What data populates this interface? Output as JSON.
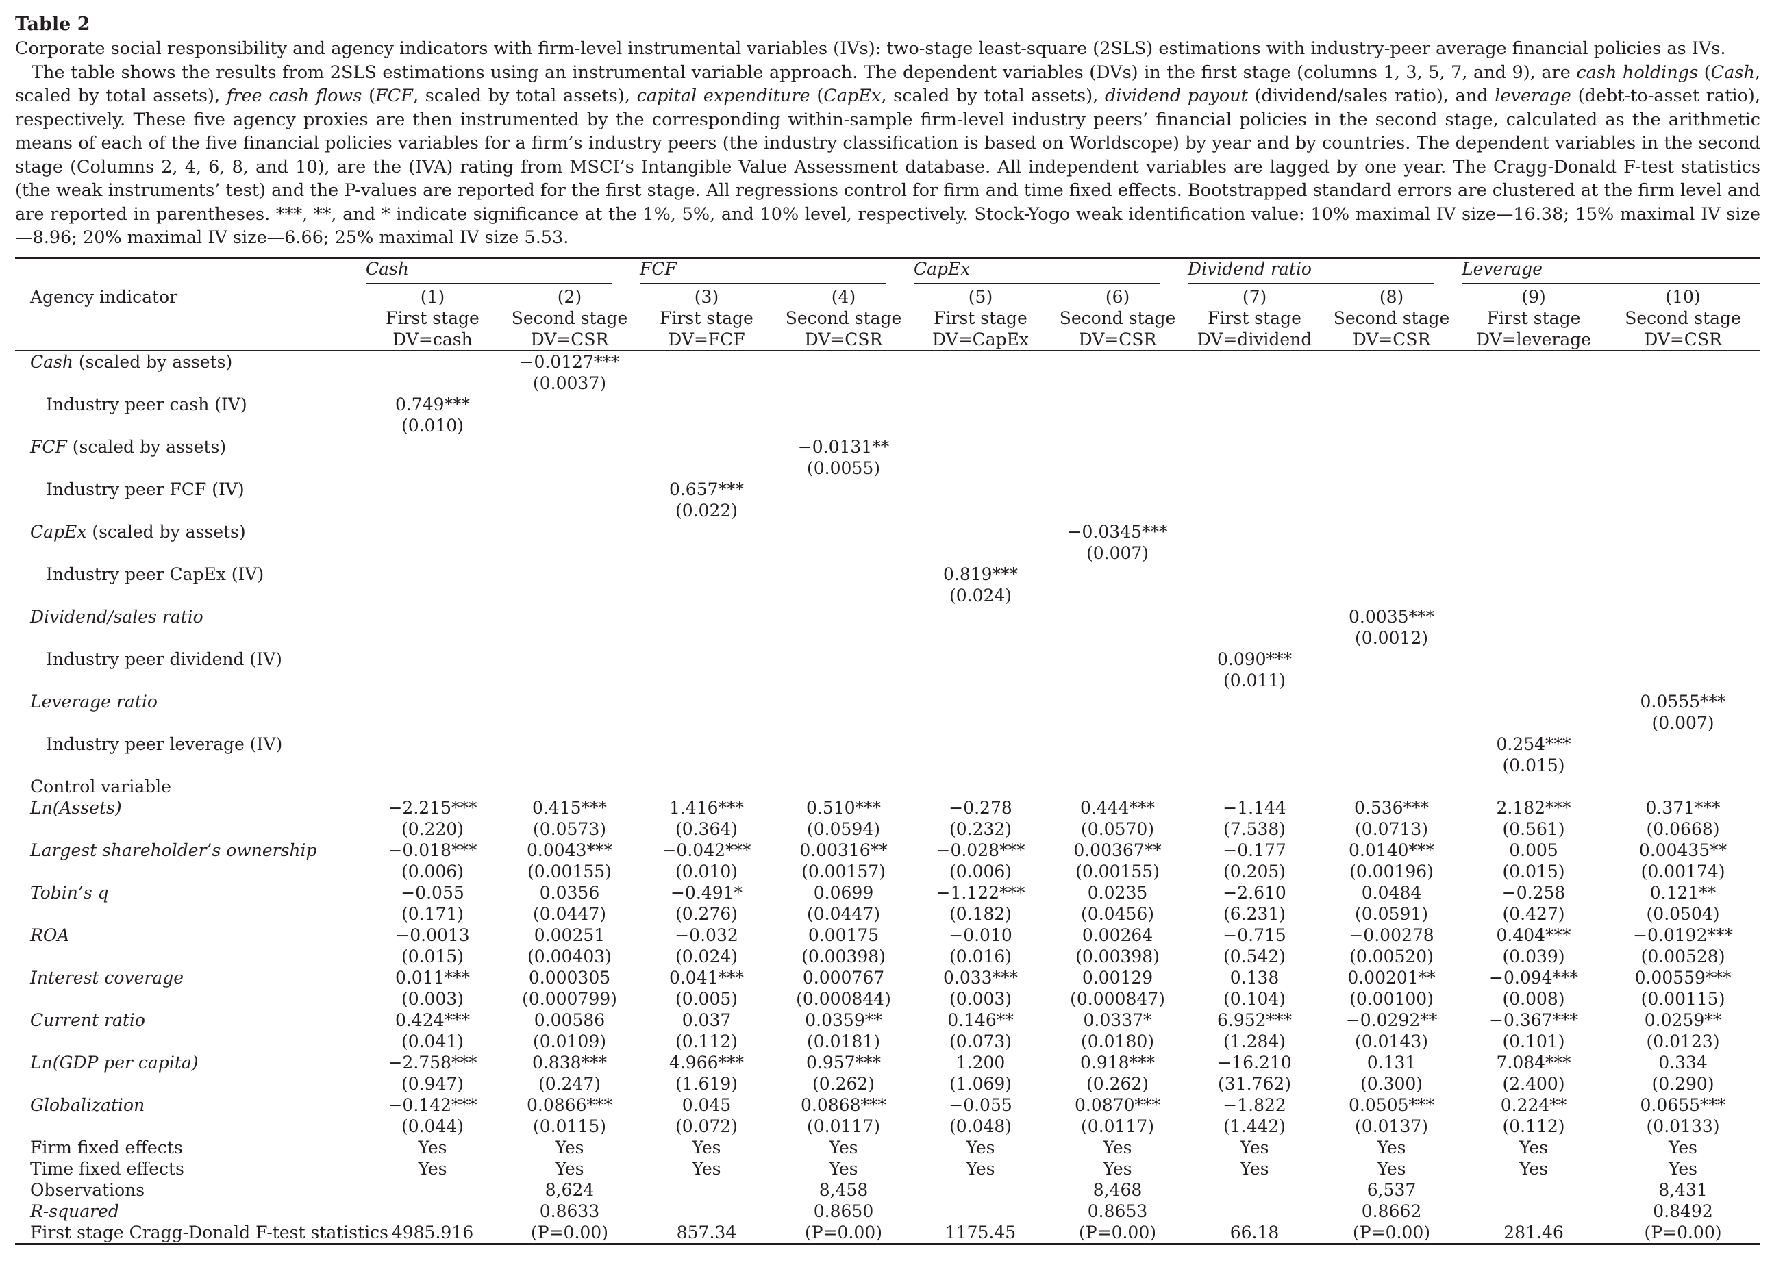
{
  "table_label": "Table 2",
  "caption_title": "Corporate social responsibility and agency indicators with firm-level instrumental variables (IVs): two-stage least-square (2SLS) estimations with industry-peer average financial policies as IVs.",
  "caption_body": {
    "t1": "The table shows the results from 2SLS estimations using an instrumental variable approach. The dependent variables (DVs) in the first stage (columns 1, 3, 5, 7, and 9), are ",
    "e1": "cash holdings",
    "t2": " (",
    "e2": "Cash",
    "t3": ", scaled by total assets), ",
    "e3": "free cash flows",
    "t4": " (",
    "e4": "FCF",
    "t5": ", scaled by total assets), ",
    "e5": "capital expenditure",
    "t6": " (",
    "e6": "CapEx",
    "t7": ", scaled by total assets), ",
    "e7": "dividend payout",
    "t8": " (dividend/sales ratio), and ",
    "e8": "leverage",
    "t9": " (debt-to-asset ratio), respectively. These five agency proxies are then instrumented by the corresponding within-sample firm-level industry peers’ financial policies in the second stage, calculated as the arithmetic means of each of the five financial policies variables for a firm’s industry peers (the industry classification is based on Worldscope) by year and by countries. The dependent variables in the second stage (Columns 2, 4, 6, 8, and 10), are the (IVA) rating from MSCI’s Intangible Value Assessment database. All independent variables are lagged by one year. The Cragg-Donald F-test statistics (the weak instruments’ test) and the P-values are reported for the first stage. All regressions control for firm and time fixed effects. Bootstrapped standard errors are clustered at the firm level and are reported in parentheses. ***, **, and * indicate significance at the 1%, 5%, and 10% level, respectively. Stock-Yogo weak identification value: 10% maximal IV size—16.38; 15% maximal IV size—8.96; 20% maximal IV size—6.66; 25% maximal IV size 5.53."
  },
  "groups": [
    "Cash",
    "FCF",
    "CapEx",
    "Dividend ratio",
    "Leverage"
  ],
  "row_header_label": "Agency indicator",
  "columns": [
    {
      "num": "(1)",
      "stage": "First stage",
      "dv": "DV=cash"
    },
    {
      "num": "(2)",
      "stage": "Second stage",
      "dv": "DV=CSR"
    },
    {
      "num": "(3)",
      "stage": "First stage",
      "dv": "DV=FCF"
    },
    {
      "num": "(4)",
      "stage": "Second stage",
      "dv": "DV=CSR"
    },
    {
      "num": "(5)",
      "stage": "First stage",
      "dv": "DV=CapEx"
    },
    {
      "num": "(6)",
      "stage": "Second stage",
      "dv": "DV=CSR"
    },
    {
      "num": "(7)",
      "stage": "First stage",
      "dv": "DV=dividend"
    },
    {
      "num": "(8)",
      "stage": "Second stage",
      "dv": "DV=CSR"
    },
    {
      "num": "(9)",
      "stage": "First stage",
      "dv": "DV=leverage"
    },
    {
      "num": "(10)",
      "stage": "Second stage",
      "dv": "DV=CSR"
    }
  ],
  "agency_rows": [
    {
      "label_main": "Cash",
      "label_rest": " (scaled by assets)",
      "style": "main",
      "cells": [
        [
          "",
          ""
        ],
        [
          "−0.0127***",
          "(0.0037)"
        ],
        [
          "",
          ""
        ],
        [
          "",
          ""
        ],
        [
          "",
          ""
        ],
        [
          "",
          ""
        ],
        [
          "",
          ""
        ],
        [
          "",
          ""
        ],
        [
          "",
          ""
        ],
        [
          "",
          ""
        ]
      ]
    },
    {
      "label_main": "Industry peer cash (IV)",
      "label_rest": "",
      "style": "sub",
      "cells": [
        [
          "0.749***",
          "(0.010)"
        ],
        [
          "",
          ""
        ],
        [
          "",
          ""
        ],
        [
          "",
          ""
        ],
        [
          "",
          ""
        ],
        [
          "",
          ""
        ],
        [
          "",
          ""
        ],
        [
          "",
          ""
        ],
        [
          "",
          ""
        ],
        [
          "",
          ""
        ]
      ]
    },
    {
      "label_main": "FCF",
      "label_rest": " (scaled by assets)",
      "style": "main",
      "cells": [
        [
          "",
          ""
        ],
        [
          "",
          ""
        ],
        [
          "",
          ""
        ],
        [
          "−0.0131**",
          "(0.0055)"
        ],
        [
          "",
          ""
        ],
        [
          "",
          ""
        ],
        [
          "",
          ""
        ],
        [
          "",
          ""
        ],
        [
          "",
          ""
        ],
        [
          "",
          ""
        ]
      ]
    },
    {
      "label_main": "Industry peer FCF (IV)",
      "label_rest": "",
      "style": "sub",
      "cells": [
        [
          "",
          ""
        ],
        [
          "",
          ""
        ],
        [
          "0.657***",
          "(0.022)"
        ],
        [
          "",
          ""
        ],
        [
          "",
          ""
        ],
        [
          "",
          ""
        ],
        [
          "",
          ""
        ],
        [
          "",
          ""
        ],
        [
          "",
          ""
        ],
        [
          "",
          ""
        ]
      ]
    },
    {
      "label_main": "CapEx",
      "label_rest": " (scaled by assets)",
      "style": "main",
      "cells": [
        [
          "",
          ""
        ],
        [
          "",
          ""
        ],
        [
          "",
          ""
        ],
        [
          "",
          ""
        ],
        [
          "",
          ""
        ],
        [
          "−0.0345***",
          "(0.007)"
        ],
        [
          "",
          ""
        ],
        [
          "",
          ""
        ],
        [
          "",
          ""
        ],
        [
          "",
          ""
        ]
      ]
    },
    {
      "label_main": "Industry peer CapEx (IV)",
      "label_rest": "",
      "style": "sub",
      "cells": [
        [
          "",
          ""
        ],
        [
          "",
          ""
        ],
        [
          "",
          ""
        ],
        [
          "",
          ""
        ],
        [
          "0.819***",
          "(0.024)"
        ],
        [
          "",
          ""
        ],
        [
          "",
          ""
        ],
        [
          "",
          ""
        ],
        [
          "",
          ""
        ],
        [
          "",
          ""
        ]
      ]
    },
    {
      "label_main": "Dividend/sales ratio",
      "label_rest": "",
      "style": "main",
      "cells": [
        [
          "",
          ""
        ],
        [
          "",
          ""
        ],
        [
          "",
          ""
        ],
        [
          "",
          ""
        ],
        [
          "",
          ""
        ],
        [
          "",
          ""
        ],
        [
          "",
          ""
        ],
        [
          "0.0035***",
          "(0.0012)"
        ],
        [
          "",
          ""
        ],
        [
          "",
          ""
        ]
      ]
    },
    {
      "label_main": "Industry peer dividend (IV)",
      "label_rest": "",
      "style": "sub",
      "cells": [
        [
          "",
          ""
        ],
        [
          "",
          ""
        ],
        [
          "",
          ""
        ],
        [
          "",
          ""
        ],
        [
          "",
          ""
        ],
        [
          "",
          ""
        ],
        [
          "0.090***",
          "(0.011)"
        ],
        [
          "",
          ""
        ],
        [
          "",
          ""
        ],
        [
          "",
          ""
        ]
      ]
    },
    {
      "label_main": "Leverage ratio",
      "label_rest": "",
      "style": "main",
      "cells": [
        [
          "",
          ""
        ],
        [
          "",
          ""
        ],
        [
          "",
          ""
        ],
        [
          "",
          ""
        ],
        [
          "",
          ""
        ],
        [
          "",
          ""
        ],
        [
          "",
          ""
        ],
        [
          "",
          ""
        ],
        [
          "",
          ""
        ],
        [
          "0.0555***",
          "(0.007)"
        ]
      ]
    },
    {
      "label_main": "Industry peer leverage (IV)",
      "label_rest": "",
      "style": "sub",
      "cells": [
        [
          "",
          ""
        ],
        [
          "",
          ""
        ],
        [
          "",
          ""
        ],
        [
          "",
          ""
        ],
        [
          "",
          ""
        ],
        [
          "",
          ""
        ],
        [
          "",
          ""
        ],
        [
          "",
          ""
        ],
        [
          "0.254***",
          "(0.015)"
        ],
        [
          "",
          ""
        ]
      ]
    }
  ],
  "control_heading": "Control variable",
  "control_rows": [
    {
      "label": "Ln(Assets)",
      "cells": [
        [
          "−2.215***",
          "(0.220)"
        ],
        [
          "0.415***",
          "(0.0573)"
        ],
        [
          "1.416***",
          "(0.364)"
        ],
        [
          "0.510***",
          "(0.0594)"
        ],
        [
          "−0.278",
          "(0.232)"
        ],
        [
          "0.444***",
          "(0.0570)"
        ],
        [
          "−1.144",
          "(7.538)"
        ],
        [
          "0.536***",
          "(0.0713)"
        ],
        [
          "2.182***",
          "(0.561)"
        ],
        [
          "0.371***",
          "(0.0668)"
        ]
      ]
    },
    {
      "label": "Largest shareholder’s ownership",
      "cells": [
        [
          "−0.018***",
          "(0.006)"
        ],
        [
          "0.0043***",
          "(0.00155)"
        ],
        [
          "−0.042***",
          "(0.010)"
        ],
        [
          "0.00316**",
          "(0.00157)"
        ],
        [
          "−0.028***",
          "(0.006)"
        ],
        [
          "0.00367**",
          "(0.00155)"
        ],
        [
          "−0.177",
          "(0.205)"
        ],
        [
          "0.0140***",
          "(0.00196)"
        ],
        [
          "0.005",
          "(0.015)"
        ],
        [
          "0.00435**",
          "(0.00174)"
        ]
      ]
    },
    {
      "label": "Tobin’s q",
      "cells": [
        [
          "−0.055",
          "(0.171)"
        ],
        [
          "0.0356",
          "(0.0447)"
        ],
        [
          "−0.491*",
          "(0.276)"
        ],
        [
          "0.0699",
          "(0.0447)"
        ],
        [
          "−1.122***",
          "(0.182)"
        ],
        [
          "0.0235",
          "(0.0456)"
        ],
        [
          "−2.610",
          "(6.231)"
        ],
        [
          "0.0484",
          "(0.0591)"
        ],
        [
          "−0.258",
          "(0.427)"
        ],
        [
          "0.121**",
          "(0.0504)"
        ]
      ]
    },
    {
      "label": "ROA",
      "cells": [
        [
          "−0.0013",
          "(0.015)"
        ],
        [
          "0.00251",
          "(0.00403)"
        ],
        [
          "−0.032",
          "(0.024)"
        ],
        [
          "0.00175",
          "(0.00398)"
        ],
        [
          "−0.010",
          "(0.016)"
        ],
        [
          "0.00264",
          "(0.00398)"
        ],
        [
          "−0.715",
          "(0.542)"
        ],
        [
          "−0.00278",
          "(0.00520)"
        ],
        [
          "0.404***",
          "(0.039)"
        ],
        [
          "−0.0192***",
          "(0.00528)"
        ]
      ]
    },
    {
      "label": "Interest coverage",
      "cells": [
        [
          "0.011***",
          "(0.003)"
        ],
        [
          "0.000305",
          "(0.000799)"
        ],
        [
          "0.041***",
          "(0.005)"
        ],
        [
          "0.000767",
          "(0.000844)"
        ],
        [
          "0.033***",
          "(0.003)"
        ],
        [
          "0.00129",
          "(0.000847)"
        ],
        [
          "0.138",
          "(0.104)"
        ],
        [
          "0.00201**",
          "(0.00100)"
        ],
        [
          "−0.094***",
          "(0.008)"
        ],
        [
          "0.00559***",
          "(0.00115)"
        ]
      ]
    },
    {
      "label": "Current ratio",
      "cells": [
        [
          "0.424***",
          "(0.041)"
        ],
        [
          "0.00586",
          "(0.0109)"
        ],
        [
          "0.037",
          "(0.112)"
        ],
        [
          "0.0359**",
          "(0.0181)"
        ],
        [
          "0.146**",
          "(0.073)"
        ],
        [
          "0.0337*",
          "(0.0180)"
        ],
        [
          "6.952***",
          "(1.284)"
        ],
        [
          "−0.0292**",
          "(0.0143)"
        ],
        [
          "−0.367***",
          "(0.101)"
        ],
        [
          "0.0259**",
          "(0.0123)"
        ]
      ]
    },
    {
      "label": "Ln(GDP per capita)",
      "cells": [
        [
          "−2.758***",
          "(0.947)"
        ],
        [
          "0.838***",
          "(0.247)"
        ],
        [
          "4.966***",
          "(1.619)"
        ],
        [
          "0.957***",
          "(0.262)"
        ],
        [
          "1.200",
          "(1.069)"
        ],
        [
          "0.918***",
          "(0.262)"
        ],
        [
          "−16.210",
          "(31.762)"
        ],
        [
          "0.131",
          "(0.300)"
        ],
        [
          "7.084***",
          "(2.400)"
        ],
        [
          "0.334",
          "(0.290)"
        ]
      ]
    },
    {
      "label": "Globalization",
      "cells": [
        [
          "−0.142***",
          "(0.044)"
        ],
        [
          "0.0866***",
          "(0.0115)"
        ],
        [
          "0.045",
          "(0.072)"
        ],
        [
          "0.0868***",
          "(0.0117)"
        ],
        [
          "−0.055",
          "(0.048)"
        ],
        [
          "0.0870***",
          "(0.0117)"
        ],
        [
          "−1.822",
          "(1.442)"
        ],
        [
          "0.0505***",
          "(0.0137)"
        ],
        [
          "0.224**",
          "(0.112)"
        ],
        [
          "0.0655***",
          "(0.0133)"
        ]
      ]
    }
  ],
  "footer_rows": [
    {
      "label": "Firm fixed effects",
      "italic": false,
      "cells": [
        "Yes",
        "Yes",
        "Yes",
        "Yes",
        "Yes",
        "Yes",
        "Yes",
        "Yes",
        "Yes",
        "Yes"
      ]
    },
    {
      "label": "Time fixed effects",
      "italic": false,
      "cells": [
        "Yes",
        "Yes",
        "Yes",
        "Yes",
        "Yes",
        "Yes",
        "Yes",
        "Yes",
        "Yes",
        "Yes"
      ]
    },
    {
      "label": "Observations",
      "italic": false,
      "cells": [
        "",
        "8,624",
        "",
        "8,458",
        "",
        "8,468",
        "",
        "6,537",
        "",
        "8,431"
      ]
    },
    {
      "label": "R-squared",
      "italic": true,
      "cells": [
        "",
        "0.8633",
        "",
        "0.8650",
        "",
        "0.8653",
        "",
        "0.8662",
        "",
        "0.8492"
      ]
    },
    {
      "label": "First stage Cragg-Donald F-test statistics",
      "italic": false,
      "cells": [
        "4985.916",
        "(P=0.00)",
        "857.34",
        "(P=0.00)",
        "1175.45",
        "(P=0.00)",
        "66.18",
        "(P=0.00)",
        "281.46",
        "(P=0.00)"
      ]
    }
  ]
}
